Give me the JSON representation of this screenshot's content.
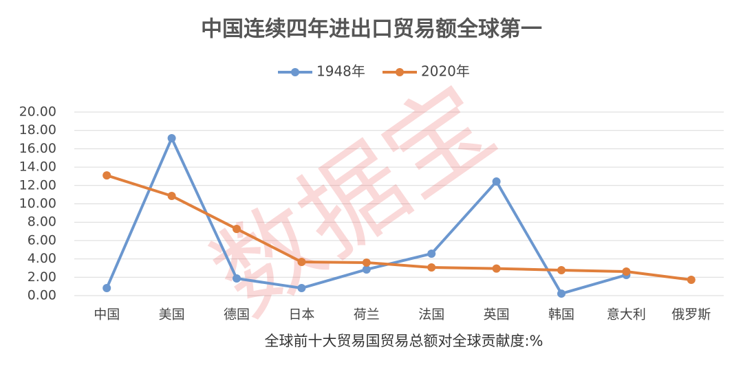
{
  "chart_data": {
    "type": "line",
    "title": "中国连续四年进出口贸易额全球第一",
    "x_label": "全球前十大贸易国贸易总额对全球贡献度:%",
    "watermark": "数据宝",
    "categories": [
      "中国",
      "美国",
      "德国",
      "日本",
      "荷兰",
      "法国",
      "英国",
      "韩国",
      "意大利",
      "俄罗斯"
    ],
    "series": [
      {
        "name": "1948年",
        "color": "#6b97cf",
        "values": [
          0.82,
          17.15,
          1.87,
          0.82,
          2.85,
          4.57,
          12.43,
          0.22,
          2.25,
          null
        ]
      },
      {
        "name": "2020年",
        "color": "#e07f3c",
        "values": [
          13.1,
          10.86,
          7.27,
          3.67,
          3.6,
          3.07,
          2.95,
          2.77,
          2.62,
          1.72
        ]
      }
    ],
    "ylim": [
      0,
      20
    ],
    "yticks": [
      {
        "value": 0,
        "label": "0.00"
      },
      {
        "value": 2,
        "label": "2.00"
      },
      {
        "value": 4,
        "label": "4.00"
      },
      {
        "value": 6,
        "label": "6.00"
      },
      {
        "value": 8,
        "label": "8.00"
      },
      {
        "value": 10,
        "label": "10.00"
      },
      {
        "value": 12,
        "label": "12.00"
      },
      {
        "value": 14,
        "label": "14.00"
      },
      {
        "value": 16,
        "label": "16.00"
      },
      {
        "value": 18,
        "label": "18.00"
      },
      {
        "value": 20,
        "label": "20.00"
      }
    ],
    "grid": true,
    "legend": "top"
  }
}
